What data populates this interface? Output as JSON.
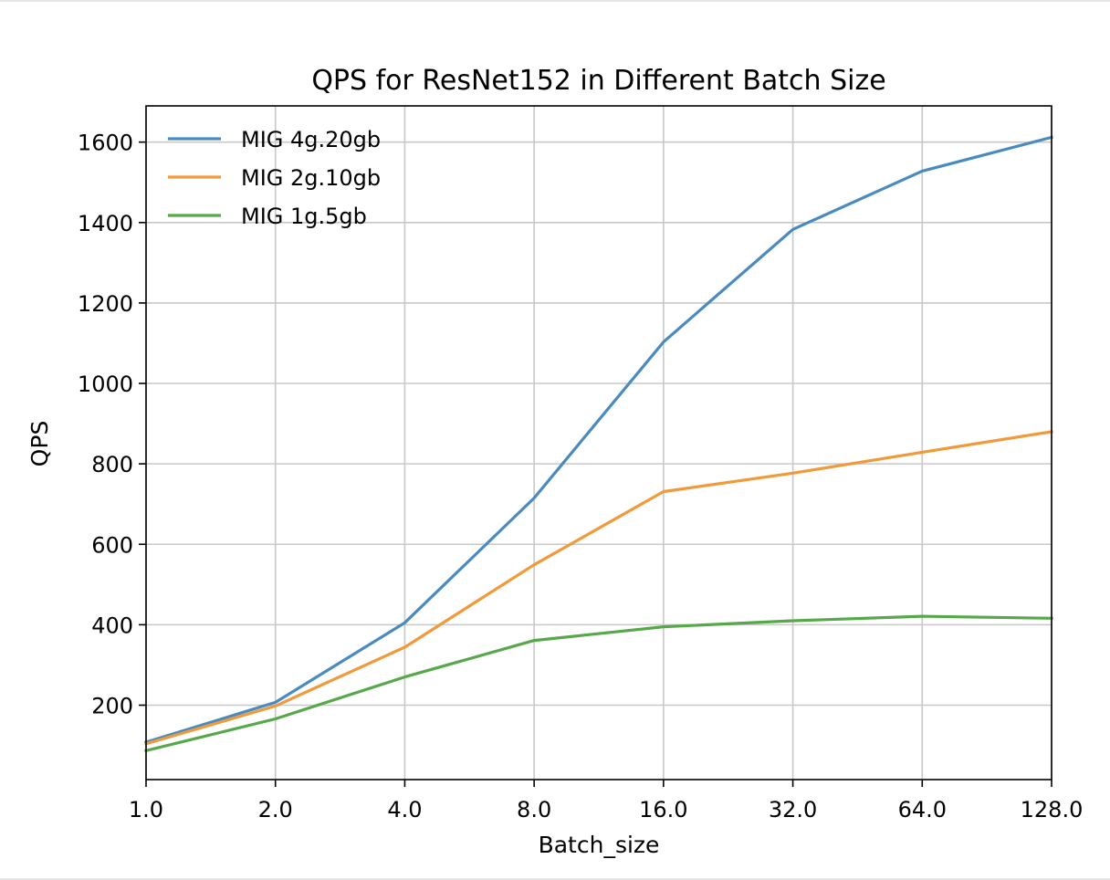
{
  "chart_data": {
    "type": "line",
    "title": "QPS for ResNet152 in Different Batch Size",
    "xlabel": "Batch_size",
    "ylabel": "QPS",
    "x_scale": "log2",
    "x": [
      1,
      2,
      4,
      8,
      16,
      32,
      64,
      128
    ],
    "x_tick_labels": [
      "1.0",
      "2.0",
      "4.0",
      "8.0",
      "16.0",
      "32.0",
      "64.0",
      "128.0"
    ],
    "xlim": [
      1,
      128
    ],
    "ylim": [
      15,
      1690
    ],
    "y_ticks": [
      200,
      400,
      600,
      800,
      1000,
      1200,
      1400,
      1600
    ],
    "y_tick_labels": [
      "200",
      "400",
      "600",
      "800",
      "1000",
      "1200",
      "1400",
      "1600"
    ],
    "grid": true,
    "legend_position": "upper-left",
    "series": [
      {
        "name": "MIG 4g.20gb",
        "color": "#4a8bbf",
        "values": [
          108,
          207,
          405,
          715,
          1103,
          1383,
          1528,
          1612
        ]
      },
      {
        "name": "MIG 2g.10gb",
        "color": "#f19a3c",
        "values": [
          104,
          198,
          344,
          549,
          731,
          777,
          829,
          880
        ]
      },
      {
        "name": "MIG 1g.5gb",
        "color": "#57a84b",
        "values": [
          87,
          166,
          270,
          361,
          395,
          410,
          421,
          416
        ]
      }
    ]
  }
}
